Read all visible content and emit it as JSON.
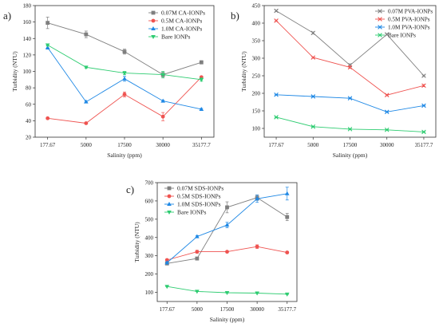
{
  "chart_data": [
    {
      "panel_label": "a)",
      "type": "line",
      "categories": [
        "177.67",
        "5000",
        "17500",
        "30000",
        "35177.7"
      ],
      "xlabel": "Salinity (ppm)",
      "ylabel": "Turbidity (NTU)",
      "ylim": [
        20,
        180
      ],
      "yticks": [
        20,
        40,
        60,
        80,
        100,
        120,
        140,
        160,
        180
      ],
      "legend": "top-right",
      "grid": false,
      "series": [
        {
          "name": "0.07M CA-IONPs",
          "color": "#7f7f7f",
          "marker": "square",
          "values": [
            159,
            145,
            124,
            96,
            111
          ],
          "errors": [
            7,
            4,
            3,
            3,
            2
          ]
        },
        {
          "name": "0.5M CA-IONPs",
          "color": "#ef5350",
          "marker": "circle",
          "values": [
            43,
            37,
            72,
            45,
            93
          ],
          "errors": [
            1,
            1,
            3,
            5,
            1
          ]
        },
        {
          "name": "1.0M CA-IONPs",
          "color": "#1e88e5",
          "marker": "triangle-up",
          "values": [
            129,
            63,
            91,
            64,
            54
          ],
          "errors": [
            2,
            1,
            3,
            1,
            1
          ]
        },
        {
          "name": "Bare IONPs",
          "color": "#2ecc71",
          "marker": "triangle-down",
          "values": [
            132,
            105,
            98,
            96,
            90
          ],
          "errors": [
            1,
            1,
            2,
            4,
            2
          ]
        }
      ]
    },
    {
      "panel_label": "b)",
      "type": "line",
      "categories": [
        "177.67",
        "5000",
        "17500",
        "30000",
        "35177.7"
      ],
      "xlabel": "Salinity (ppm)",
      "ylabel": "Turbidity (NTU)",
      "ylim": [
        75,
        450
      ],
      "yticks": [
        100,
        150,
        200,
        250,
        300,
        350,
        400,
        450
      ],
      "legend": "top-right",
      "grid": false,
      "series": [
        {
          "name": "0.07M PVA-IONPs",
          "color": "#7f7f7f",
          "marker": "cross",
          "values": [
            435,
            372,
            280,
            368,
            250
          ],
          "errors": [
            2,
            3,
            4,
            2,
            2
          ]
        },
        {
          "name": "0.5M PVA-IONPs",
          "color": "#ef5350",
          "marker": "cross",
          "values": [
            407,
            302,
            274,
            195,
            222
          ],
          "errors": [
            2,
            2,
            3,
            2,
            3
          ]
        },
        {
          "name": "1.0M PVA-IONPs",
          "color": "#1e88e5",
          "marker": "cross",
          "values": [
            196,
            191,
            186,
            147,
            165
          ],
          "errors": [
            1,
            1,
            1,
            1,
            1
          ]
        },
        {
          "name": "Bare IONPs",
          "color": "#2ecc71",
          "marker": "cross",
          "values": [
            132,
            105,
            98,
            96,
            90
          ],
          "errors": [
            1,
            1,
            1,
            1,
            1
          ]
        }
      ]
    },
    {
      "panel_label": "c)",
      "type": "line",
      "categories": [
        "177.67",
        "5000",
        "17500",
        "30000",
        "35177.7"
      ],
      "xlabel": "Salinity (ppm)",
      "ylabel": "Turbidity (NTU)",
      "ylim": [
        50,
        700
      ],
      "yticks": [
        100,
        200,
        300,
        400,
        500,
        600,
        700
      ],
      "legend": "top-left",
      "grid": false,
      "series": [
        {
          "name": "0.07M SDS-IONPs",
          "color": "#7f7f7f",
          "marker": "square",
          "values": [
            258,
            285,
            565,
            618,
            512
          ],
          "errors": [
            5,
            8,
            30,
            15,
            20
          ]
        },
        {
          "name": "0.5M SDS-IONPs",
          "color": "#ef5350",
          "marker": "circle",
          "values": [
            277,
            322,
            322,
            350,
            318
          ],
          "errors": [
            4,
            8,
            5,
            10,
            6
          ]
        },
        {
          "name": "1.0M SDS-IONPs",
          "color": "#1e88e5",
          "marker": "triangle-up",
          "values": [
            262,
            405,
            468,
            612,
            640
          ],
          "errors": [
            6,
            6,
            15,
            20,
            35
          ]
        },
        {
          "name": "Bare IONPs",
          "color": "#2ecc71",
          "marker": "triangle-down",
          "values": [
            132,
            105,
            98,
            96,
            90
          ],
          "errors": [
            1,
            1,
            2,
            2,
            2
          ]
        }
      ]
    }
  ]
}
